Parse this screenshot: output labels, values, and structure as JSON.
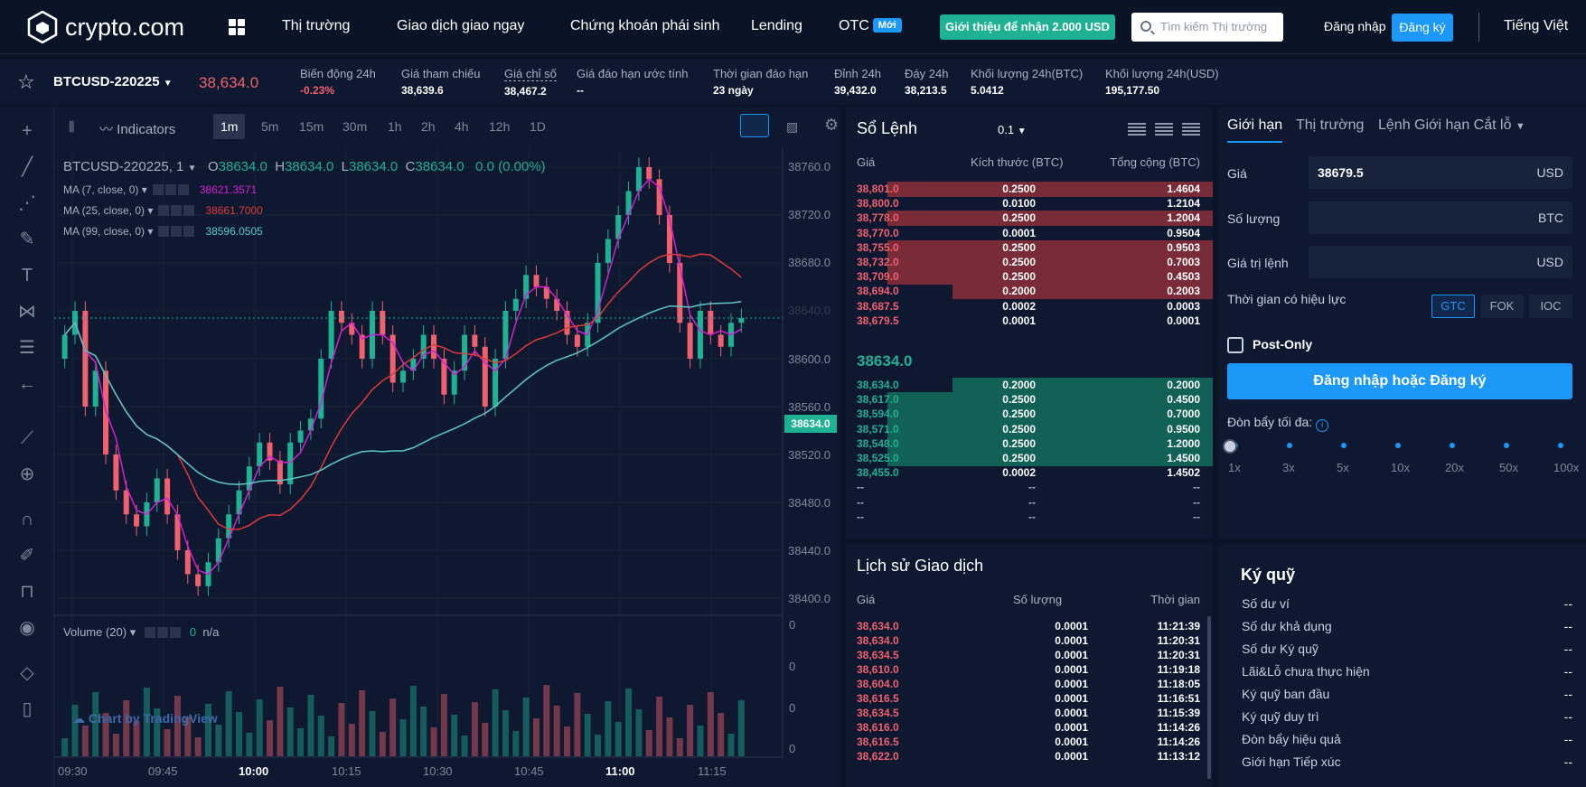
{
  "nav": {
    "logo_text": "crypto.com",
    "items": [
      {
        "label": "Thị trường"
      },
      {
        "label": "Giao dịch giao ngay"
      },
      {
        "label": "Chứng khoán phái sinh"
      },
      {
        "label": "Lending"
      },
      {
        "label": "OTC",
        "badge": "Mới"
      }
    ],
    "promo": "Giới thiệu để nhận 2.000 USD",
    "search_placeholder": "Tìm kiếm Thị trường",
    "login": "Đăng nhập",
    "signup": "Đăng ký",
    "language": "Tiếng Việt"
  },
  "ticker": {
    "symbol": "BTCUSD-220225",
    "price": "38,634.0",
    "stats": [
      {
        "label": "Biến động 24h",
        "value": "-0.23%"
      },
      {
        "label": "Giá tham chiếu",
        "value": "38,639.6"
      },
      {
        "label": "Giá chỉ số",
        "value": "38,467.2"
      },
      {
        "label": "Giá đáo hạn ước tính",
        "value": "--"
      },
      {
        "label": "Thời gian đáo hạn",
        "value": "23 ngày"
      },
      {
        "label": "Đỉnh 24h",
        "value": "39,432.0"
      },
      {
        "label": "Đáy 24h",
        "value": "38,213.5"
      },
      {
        "label": "Khối lượng 24h(BTC)",
        "value": "5.0412"
      },
      {
        "label": "Khối lượng 24h(USD)",
        "value": "195,177.50"
      }
    ]
  },
  "chart": {
    "indicators_label": "Indicators",
    "intervals": [
      "1m",
      "5m",
      "15m",
      "30m",
      "1h",
      "2h",
      "4h",
      "12h",
      "1D"
    ],
    "active_interval": "1m",
    "legend": {
      "symbol": "BTCUSD-220225, 1",
      "o": "38634.0",
      "h": "38634.0",
      "l": "38634.0",
      "c": "38634.0",
      "change": "0.0 (0.00%)"
    },
    "mas": [
      {
        "label": "MA (7, close, 0)",
        "value": "38621.3571",
        "color": "#d41fd4"
      },
      {
        "label": "MA (25, close, 0)",
        "value": "38661.7000",
        "color": "#e03a3a"
      },
      {
        "label": "MA (99, close, 0)",
        "value": "38596.0505",
        "color": "#5bc9c9"
      }
    ],
    "price_ticks": [
      "38760.0",
      "38720.0",
      "38680.0",
      "38640.0",
      "38600.0",
      "38560.0",
      "38520.0",
      "38480.0",
      "38440.0",
      "38400.0"
    ],
    "last_price_tag": "38634.0",
    "time_ticks": [
      {
        "label": "09:30",
        "bold": false
      },
      {
        "label": "09:45",
        "bold": false
      },
      {
        "label": "10:00",
        "bold": true
      },
      {
        "label": "10:15",
        "bold": false
      },
      {
        "label": "10:30",
        "bold": false
      },
      {
        "label": "10:45",
        "bold": false
      },
      {
        "label": "11:00",
        "bold": true
      },
      {
        "label": "11:15",
        "bold": false
      }
    ],
    "volume_label": "Volume (20)",
    "volume_value": "0",
    "volume_na": "n/a",
    "volume_ticks": [
      "0",
      "0",
      "0",
      "0"
    ],
    "tradingview": "Chart by TradingView",
    "colors": {
      "up": "#1fb193",
      "down": "#f0616d"
    }
  },
  "orderbook": {
    "title": "Sổ Lệnh",
    "precision": "0.1",
    "headers": [
      "Giá",
      "Kích thước (BTC)",
      "Tổng cộng (BTC)"
    ],
    "asks": [
      {
        "price": "38,801.0",
        "size": "0.2500",
        "total": "1.4604",
        "depth": 1.0
      },
      {
        "price": "38,800.0",
        "size": "0.0100",
        "total": "1.2104",
        "depth": 0.0
      },
      {
        "price": "38,778.0",
        "size": "0.2500",
        "total": "1.2004",
        "depth": 1.0
      },
      {
        "price": "38,770.0",
        "size": "0.0001",
        "total": "0.9504",
        "depth": 0.0
      },
      {
        "price": "38,755.0",
        "size": "0.2500",
        "total": "0.9503",
        "depth": 1.0
      },
      {
        "price": "38,732.0",
        "size": "0.2500",
        "total": "0.7003",
        "depth": 1.0
      },
      {
        "price": "38,709.0",
        "size": "0.2500",
        "total": "0.4503",
        "depth": 1.0
      },
      {
        "price": "38,694.0",
        "size": "0.2000",
        "total": "0.2003",
        "depth": 0.8
      },
      {
        "price": "38,687.5",
        "size": "0.0002",
        "total": "0.0003",
        "depth": 0.0
      },
      {
        "price": "38,679.5",
        "size": "0.0001",
        "total": "0.0001",
        "depth": 0.0
      }
    ],
    "mid_price": "38634.0",
    "bids": [
      {
        "price": "38,634.0",
        "size": "0.2000",
        "total": "0.2000",
        "depth": 0.8
      },
      {
        "price": "38,617.0",
        "size": "0.2500",
        "total": "0.4500",
        "depth": 1.0
      },
      {
        "price": "38,594.0",
        "size": "0.2500",
        "total": "0.7000",
        "depth": 1.0
      },
      {
        "price": "38,571.0",
        "size": "0.2500",
        "total": "0.9500",
        "depth": 1.0
      },
      {
        "price": "38,548.0",
        "size": "0.2500",
        "total": "1.2000",
        "depth": 1.0
      },
      {
        "price": "38,525.0",
        "size": "0.2500",
        "total": "1.4500",
        "depth": 1.0
      },
      {
        "price": "38,455.0",
        "size": "0.0002",
        "total": "1.4502",
        "depth": 0.0
      },
      {
        "price": "--",
        "size": "--",
        "total": "--",
        "depth": 0.0
      },
      {
        "price": "--",
        "size": "--",
        "total": "--",
        "depth": 0.0
      },
      {
        "price": "--",
        "size": "--",
        "total": "--",
        "depth": 0.0
      }
    ]
  },
  "history": {
    "title": "Lịch sử Giao dịch",
    "headers": [
      "Giá",
      "Số lượng",
      "Thời gian"
    ],
    "rows": [
      {
        "price": "38,634.0",
        "qty": "0.0001",
        "time": "11:21:39"
      },
      {
        "price": "38,634.0",
        "qty": "0.0001",
        "time": "11:20:31"
      },
      {
        "price": "38,634.5",
        "qty": "0.0001",
        "time": "11:20:31"
      },
      {
        "price": "38,610.0",
        "qty": "0.0001",
        "time": "11:19:18"
      },
      {
        "price": "38,604.0",
        "qty": "0.0001",
        "time": "11:18:05"
      },
      {
        "price": "38,616.5",
        "qty": "0.0001",
        "time": "11:16:51"
      },
      {
        "price": "38,634.5",
        "qty": "0.0001",
        "time": "11:15:39"
      },
      {
        "price": "38,616.0",
        "qty": "0.0001",
        "time": "11:14:26"
      },
      {
        "price": "38,616.5",
        "qty": "0.0001",
        "time": "11:14:26"
      },
      {
        "price": "38,622.0",
        "qty": "0.0001",
        "time": "11:13:12"
      }
    ]
  },
  "orderform": {
    "tabs": [
      "Giới hạn",
      "Thị trường",
      "Lệnh Giới hạn Cắt lỗ"
    ],
    "price_label": "Giá",
    "price_value": "38679.5",
    "price_unit": "USD",
    "qty_label": "Số lượng",
    "qty_unit": "BTC",
    "value_label": "Giá trị lệnh",
    "value_unit": "USD",
    "tif_label": "Thời gian có hiệu lực",
    "tif_options": [
      "GTC",
      "FOK",
      "IOC"
    ],
    "tif_active": "GTC",
    "post_only": "Post-Only",
    "submit": "Đăng nhập hoặc Đăng ký",
    "leverage_label": "Đòn bẩy tối đa:",
    "leverage_ticks": [
      "1x",
      "3x",
      "5x",
      "10x",
      "20x",
      "50x",
      "100x"
    ],
    "leverage_selected": "1x"
  },
  "margin": {
    "title": "Ký quỹ",
    "rows": [
      {
        "label": "Số dư ví",
        "value": "--"
      },
      {
        "label": "Số dư khả dụng",
        "value": "--"
      },
      {
        "label": "Số dư Ký quỹ",
        "value": "--"
      },
      {
        "label": "Lãi&Lỗ chưa thực hiện",
        "value": "--"
      },
      {
        "label": "Ký quỹ ban đầu",
        "value": "--"
      },
      {
        "label": "Ký quỹ duy trì",
        "value": "--"
      },
      {
        "label": "Đòn bẩy hiệu quả",
        "value": "--"
      },
      {
        "label": "Giới hạn Tiếp xúc",
        "value": "--"
      }
    ]
  }
}
